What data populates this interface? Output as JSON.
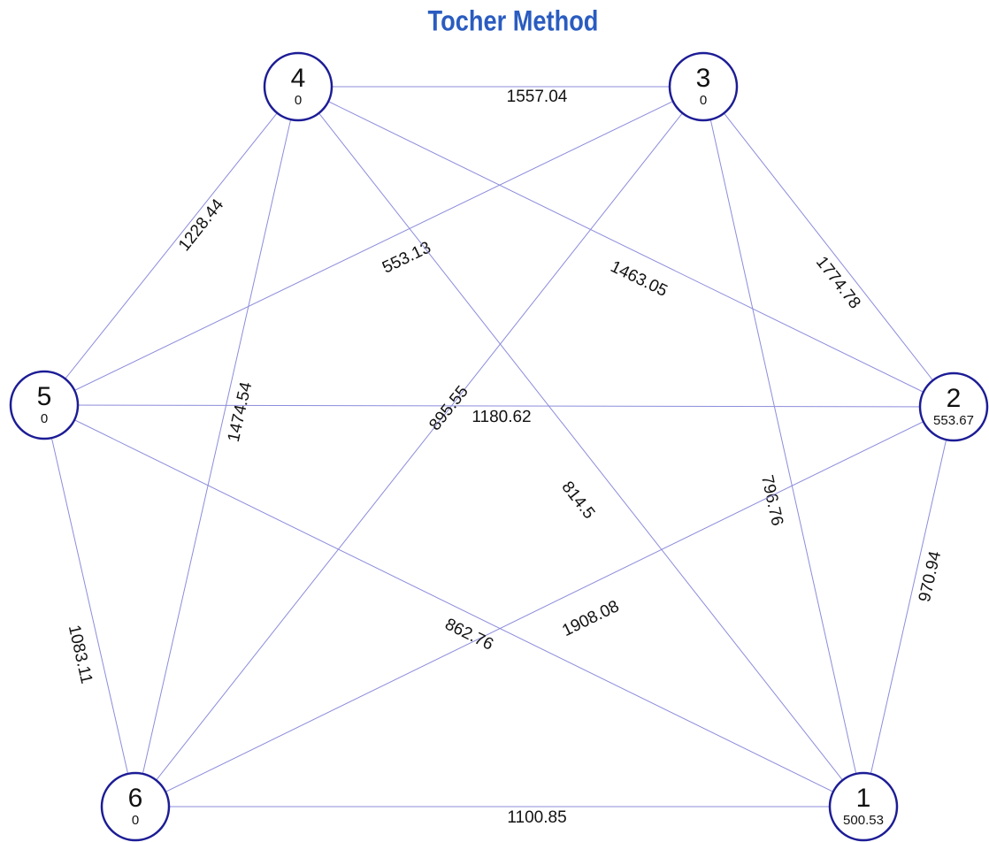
{
  "title": "Tocher Method",
  "nodes": [
    {
      "label": "1",
      "value": 500.53
    },
    {
      "label": "2",
      "value": 553.67
    },
    {
      "label": "3",
      "value": 0
    },
    {
      "label": "4",
      "value": 0
    },
    {
      "label": "5",
      "value": 0
    },
    {
      "label": "6",
      "value": 0
    }
  ],
  "edges": [
    {
      "from": "4",
      "to": "3",
      "label": 1557.04
    },
    {
      "from": "5",
      "to": "4",
      "label": 1228.44
    },
    {
      "from": "5",
      "to": "3",
      "label": 553.13
    },
    {
      "from": "4",
      "to": "2",
      "label": 1463.05
    },
    {
      "from": "3",
      "to": "2",
      "label": 1774.78
    },
    {
      "from": "5",
      "to": "2",
      "label": 1180.62
    },
    {
      "from": "6",
      "to": "4",
      "label": 1474.54
    },
    {
      "from": "6",
      "to": "3",
      "label": 895.55
    },
    {
      "from": "4",
      "to": "1",
      "label": 814.5
    },
    {
      "from": "3",
      "to": "1",
      "label": 796.76
    },
    {
      "from": "1",
      "to": "2",
      "label": 970.94
    },
    {
      "from": "6",
      "to": "2",
      "label": 1908.08
    },
    {
      "from": "5",
      "to": "1",
      "label": 862.76
    },
    {
      "from": "5",
      "to": "6",
      "label": 1083.11
    },
    {
      "from": "6",
      "to": "1",
      "label": 1100.85
    }
  ]
}
